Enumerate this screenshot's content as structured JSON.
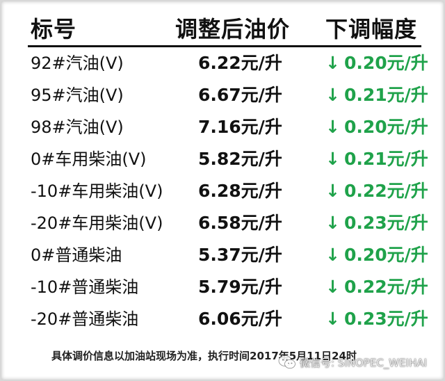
{
  "header": {
    "col_name": "标号",
    "col_price": "调整后油价",
    "col_change": "下调幅度"
  },
  "rows": [
    {
      "name": "92#汽油(V)",
      "price": "6.22元/升",
      "change": "0.20元/升"
    },
    {
      "name": "95#汽油(V)",
      "price": "6.67元/升",
      "change": "0.21元/升"
    },
    {
      "name": "98#汽油(V)",
      "price": "7.16元/升",
      "change": "0.20元/升"
    },
    {
      "name": "0#车用柴油(V)",
      "price": "5.82元/升",
      "change": "0.21元/升"
    },
    {
      "name": "-10#车用柴油(V)",
      "price": "6.28元/升",
      "change": "0.22元/升"
    },
    {
      "name": "-20#车用柴油(V)",
      "price": "6.58元/升",
      "change": "0.23元/升"
    },
    {
      "name": "0#普通柴油",
      "price": "5.37元/升",
      "change": "0.20元/升"
    },
    {
      "name": "-10#普通柴油",
      "price": "5.79元/升",
      "change": "0.22元/升"
    },
    {
      "name": "-20#普通柴油",
      "price": "6.06元/升",
      "change": "0.23元/升"
    }
  ],
  "arrow_glyph": "↓",
  "footer": {
    "note": "具体调价信息以加油站现场为准，执行时间2017年5月11日24时"
  },
  "watermark": {
    "text": "微信号: SINOPEC_WEIHAI",
    "icon": "wechat-icon"
  },
  "colors": {
    "decrease": "#1fa24a",
    "text": "#111111"
  }
}
